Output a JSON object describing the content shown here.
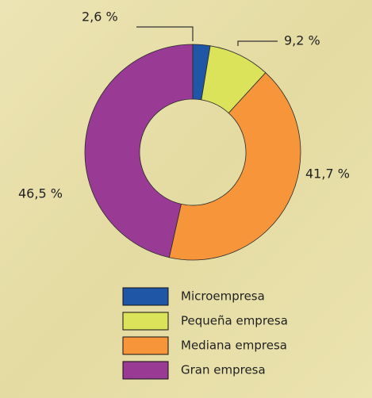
{
  "chart_data": {
    "type": "donut",
    "categories": [
      "Microempresa",
      "Pequeña empresa",
      "Mediana empresa",
      "Gran empresa"
    ],
    "values": [
      2.6,
      9.2,
      41.7,
      46.5
    ],
    "value_labels": [
      "2,6 %",
      "9,2 %",
      "41,7 %",
      "46,5 %"
    ],
    "colors": [
      "#1f56a5",
      "#dbe35b",
      "#f7953b",
      "#993a95"
    ],
    "legend": "bottom"
  }
}
